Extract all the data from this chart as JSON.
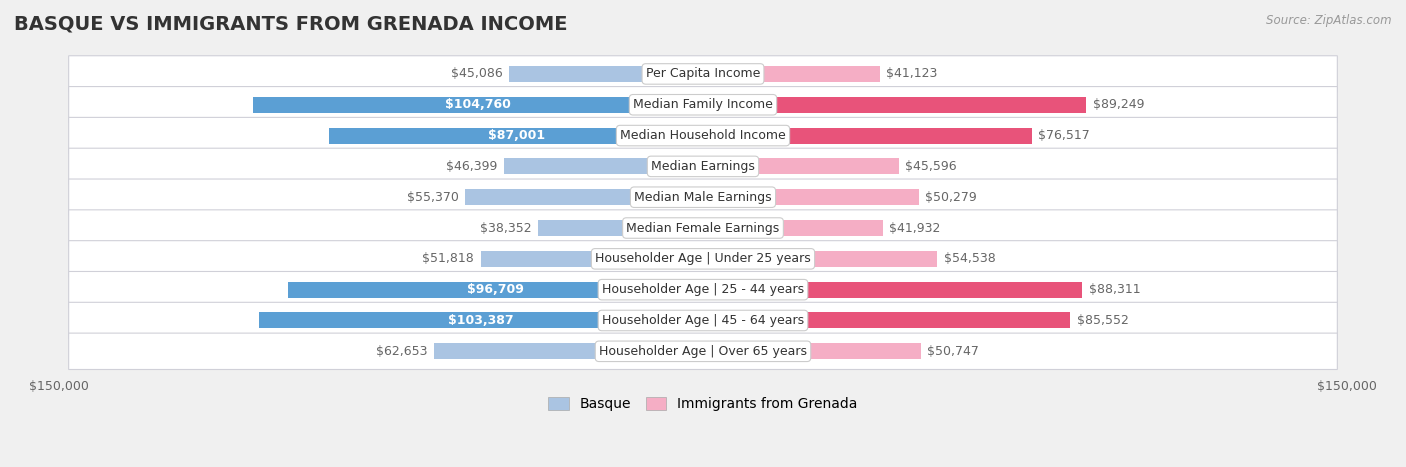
{
  "title": "BASQUE VS IMMIGRANTS FROM GRENADA INCOME",
  "source": "Source: ZipAtlas.com",
  "categories": [
    "Per Capita Income",
    "Median Family Income",
    "Median Household Income",
    "Median Earnings",
    "Median Male Earnings",
    "Median Female Earnings",
    "Householder Age | Under 25 years",
    "Householder Age | 25 - 44 years",
    "Householder Age | 45 - 64 years",
    "Householder Age | Over 65 years"
  ],
  "basque_values": [
    45086,
    104760,
    87001,
    46399,
    55370,
    38352,
    51818,
    96709,
    103387,
    62653
  ],
  "grenada_values": [
    41123,
    89249,
    76517,
    45596,
    50279,
    41932,
    54538,
    88311,
    85552,
    50747
  ],
  "basque_color_light": "#aac4e2",
  "basque_color_dark": "#5b9fd4",
  "grenada_color_light": "#f5aec5",
  "grenada_color_dark": "#e8537a",
  "basque_dark_threshold": 75000,
  "grenada_dark_threshold": 70000,
  "max_value": 150000,
  "label_color_outside": "#666666",
  "label_color_inside": "#ffffff",
  "bg_color": "#f0f0f0",
  "row_bg_color": "#ffffff",
  "row_border_color": "#d0d0d8",
  "title_fontsize": 14,
  "label_fontsize": 9,
  "cat_fontsize": 9,
  "legend_fontsize": 10,
  "axis_label_fontsize": 9
}
